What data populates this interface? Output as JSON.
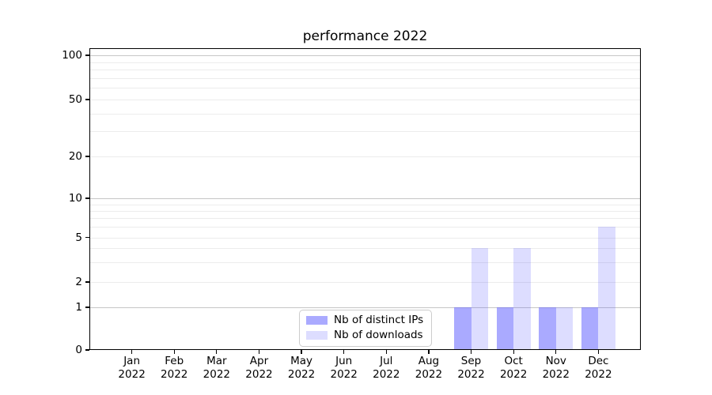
{
  "chart_data": {
    "type": "bar",
    "title": "performance 2022",
    "categories": [
      "Jan",
      "Feb",
      "Mar",
      "Apr",
      "May",
      "Jun",
      "Jul",
      "Aug",
      "Sep",
      "Oct",
      "Nov",
      "Dec"
    ],
    "category_year": "2022",
    "series": [
      {
        "name": "Nb of distinct IPs",
        "legend_color": "#aaaaff",
        "bar_fill": "rgba(85,85,255,0.5)",
        "values": [
          0,
          0,
          0,
          0,
          0,
          0,
          0,
          0,
          1,
          1,
          1,
          1
        ]
      },
      {
        "name": "Nb of downloads",
        "legend_color": "#ddddff",
        "bar_fill": "rgba(85,85,255,0.2)",
        "values": [
          0,
          0,
          0,
          0,
          0,
          0,
          0,
          0,
          4,
          4,
          1,
          6
        ]
      }
    ],
    "yticks": [
      0,
      1,
      2,
      5,
      10,
      20,
      50,
      100
    ],
    "minor_yticks": [
      3,
      4,
      6,
      7,
      8,
      9,
      30,
      40,
      60,
      70,
      80,
      90
    ],
    "major_grid_values": [
      1,
      10,
      100
    ],
    "xlabel": "",
    "ylabel": "",
    "ylim": [
      0,
      120
    ],
    "yscale": "quasi-log (linear below 1)",
    "grid": "horizontal major+minor",
    "legend": {
      "position": "lower-center-inside",
      "entries": [
        "Nb of distinct IPs",
        "Nb of downloads"
      ]
    }
  }
}
